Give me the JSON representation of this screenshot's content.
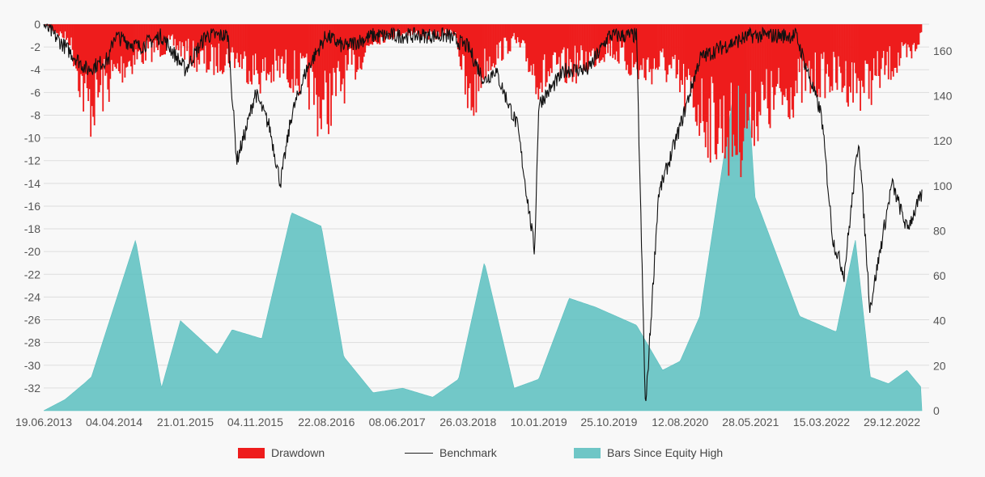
{
  "chart_data": {
    "type": "area",
    "x_tick_labels": [
      "19.06.2013",
      "04.04.2014",
      "21.01.2015",
      "04.11.2015",
      "22.08.2016",
      "08.06.2017",
      "26.03.2018",
      "10.01.2019",
      "25.10.2019",
      "12.08.2020",
      "28.05.2021",
      "15.03.2022",
      "29.12.2022"
    ],
    "x_range": [
      "19.06.2013",
      "29.12.2022"
    ],
    "left_axis": {
      "ticks": [
        0,
        -2,
        -4,
        -6,
        -8,
        -10,
        -12,
        -14,
        -16,
        -18,
        -20,
        -22,
        -24,
        -26,
        -28,
        -30,
        -32
      ],
      "range": [
        -34,
        0
      ]
    },
    "right_axis": {
      "ticks": [
        0,
        20,
        40,
        60,
        80,
        100,
        120,
        140,
        160
      ],
      "range": [
        0,
        170
      ]
    },
    "grid": true,
    "legend_position": "bottom",
    "series": [
      {
        "name": "Drawdown",
        "type": "bar",
        "axis": "left",
        "color": "#ee1c1c",
        "x": [
          "19.06.2013",
          "01.10.2013",
          "15.12.2013",
          "01.03.2014",
          "20.05.2014",
          "15.08.2014",
          "01.12.2014",
          "15.04.2015",
          "01.08.2015",
          "01.12.2015",
          "01.03.2016",
          "01.06.2016",
          "01.08.2016",
          "01.11.2016",
          "01.03.2017",
          "01.07.2017",
          "01.11.2017",
          "01.02.2018",
          "26.03.2018",
          "01.06.2018",
          "01.10.2018",
          "10.01.2019",
          "01.04.2019",
          "01.07.2019",
          "25.10.2019",
          "01.03.2020",
          "01.06.2020",
          "12.08.2020",
          "01.12.2020",
          "01.04.2021",
          "28.05.2021",
          "01.09.2021",
          "01.12.2021",
          "15.03.2022",
          "01.06.2022",
          "01.09.2022",
          "01.11.2022",
          "29.12.2022",
          "15.03.2023",
          "01.05.2023"
        ],
        "y": [
          0,
          -2,
          -10.8,
          -7.5,
          -5,
          -3.5,
          -2.5,
          -5,
          -4,
          -6.5,
          -5.5,
          -7.3,
          -11,
          -7,
          -2,
          -1,
          -1.5,
          -1,
          -11,
          -5,
          -2,
          -7,
          -6,
          -5,
          -3,
          -6,
          -5,
          -8,
          -12,
          -14.5,
          -11,
          -10,
          -8,
          -6.5,
          -7,
          -7.8,
          -6.5,
          -5,
          -4,
          -1
        ]
      },
      {
        "name": "Benchmark",
        "type": "line",
        "axis": "left",
        "color": "#111111",
        "x": [
          "19.06.2013",
          "15.09.2013",
          "15.12.2013",
          "15.03.2014",
          "04.04.2014",
          "15.07.2014",
          "15.10.2014",
          "21.01.2015",
          "15.04.2015",
          "15.07.2015",
          "20.08.2015",
          "01.10.2015",
          "04.11.2015",
          "01.01.2016",
          "15.02.2016",
          "01.04.2016",
          "01.06.2016",
          "22.08.2016",
          "01.11.2016",
          "01.03.2017",
          "08.06.2017",
          "01.10.2017",
          "01.01.2018",
          "26.03.2018",
          "01.06.2018",
          "15.07.2018",
          "15.10.2018",
          "24.12.2018",
          "10.01.2019",
          "01.05.2019",
          "01.08.2019",
          "25.10.2019",
          "15.02.2020",
          "23.03.2020",
          "15.05.2020",
          "12.08.2020",
          "01.11.2020",
          "01.02.2021",
          "28.05.2021",
          "01.09.2021",
          "01.12.2021",
          "15.03.2022",
          "01.05.2022",
          "16.06.2022",
          "15.08.2022",
          "30.09.2022",
          "29.12.2022",
          "01.03.2023",
          "01.05.2023"
        ],
        "y": [
          0,
          -2,
          -4,
          -3,
          -1,
          -2,
          -1,
          -4,
          -1,
          -1,
          -12,
          -9,
          -6,
          -9,
          -14,
          -8,
          -4,
          -1,
          -2,
          -1,
          -1,
          -1,
          -1,
          -2,
          -5,
          -4,
          -9,
          -20,
          -7,
          -4,
          -4,
          -1,
          -1,
          -34,
          -15,
          -9,
          -3,
          -2,
          -1,
          -1,
          -1,
          -8,
          -19,
          -22,
          -10,
          -25,
          -14,
          -18,
          -15
        ]
      },
      {
        "name": "Bars Since Equity High",
        "type": "area",
        "axis": "right",
        "color": "#5bbfbf",
        "x": [
          "19.06.2013",
          "15.09.2013",
          "01.12.2013",
          "01.01.2014",
          "01.07.2014",
          "15.10.2014",
          "01.01.2015",
          "01.06.2015",
          "01.08.2015",
          "01.12.2015",
          "01.04.2016",
          "01.08.2016",
          "01.11.2016",
          "01.03.2017",
          "01.07.2017",
          "01.11.2017",
          "15.02.2018",
          "01.06.2018",
          "01.10.2018",
          "10.01.2019",
          "15.05.2019",
          "01.09.2019",
          "15.02.2020",
          "01.06.2020",
          "12.08.2020",
          "01.11.2020",
          "01.05.2021",
          "15.06.2021",
          "15.12.2021",
          "15.05.2022",
          "01.08.2022",
          "01.10.2022",
          "15.12.2022",
          "01.03.2023",
          "01.05.2023"
        ],
        "y": [
          0,
          5,
          12,
          15,
          76,
          10,
          40,
          25,
          36,
          32,
          88,
          82,
          24,
          8,
          10,
          6,
          14,
          66,
          10,
          14,
          50,
          46,
          38,
          18,
          22,
          42,
          172,
          95,
          42,
          35,
          76,
          15,
          12,
          18,
          10
        ]
      }
    ]
  },
  "legend": {
    "drawdown_label": "Drawdown",
    "benchmark_label": "Benchmark",
    "bars_label": "Bars Since Equity High"
  },
  "colors": {
    "drawdown": "#ee1c1c",
    "benchmark": "#111111",
    "bars": "#5bbfbf",
    "grid": "#dddddd",
    "background": "#f8f8f8"
  }
}
